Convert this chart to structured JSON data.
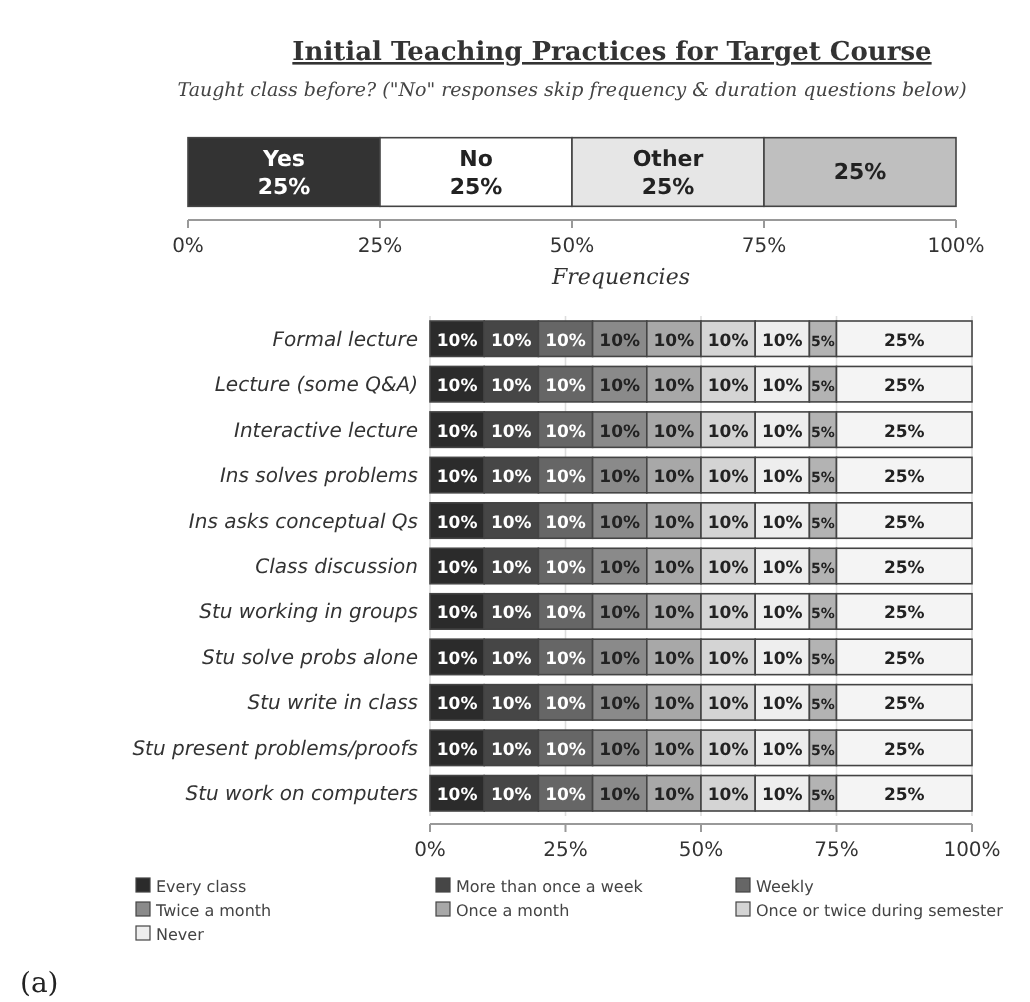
{
  "chart_data": [
    {
      "type": "bar",
      "orientation": "horizontal",
      "stacked": true,
      "title": "Initial Teaching Practices for Target Course",
      "subtitle": "Taught class before? (\"No\" responses skip frequency & duration questions below)",
      "categories": [
        null
      ],
      "series": [
        {
          "name": "Yes",
          "color": "#333333",
          "values": [
            25
          ],
          "value_labels": [
            "25%"
          ]
        },
        {
          "name": "No",
          "color": "#ffffff",
          "values": [
            25
          ],
          "value_labels": [
            "25%"
          ]
        },
        {
          "name": "Other",
          "color": "#e6e6e6",
          "values": [
            25
          ],
          "value_labels": [
            "25%"
          ]
        },
        {
          "color": "#bfbfbf",
          "values": [
            25
          ],
          "value_labels": [
            "25%"
          ]
        }
      ],
      "xlim": [
        0,
        100
      ],
      "xticks": [
        {
          "value": 0,
          "label": "0%"
        },
        {
          "value": 25,
          "label": "25%"
        },
        {
          "value": 50,
          "label": "50%"
        },
        {
          "value": 75,
          "label": "75%"
        },
        {
          "value": 100,
          "label": "100%"
        }
      ],
      "legend": false,
      "annotations": [
        "(a)"
      ]
    },
    {
      "type": "bar",
      "orientation": "horizontal",
      "stacked": true,
      "title": "Frequencies",
      "categories": [
        "Formal lecture",
        "Lecture (some Q&A)",
        "Interactive lecture",
        "Ins solves problems",
        "Ins asks conceptual Qs",
        "Class discussion",
        "Stu working in groups",
        "Stu solve probs alone",
        "Stu write in class",
        "Stu present problems/proofs",
        "Stu work on computers"
      ],
      "series": [
        {
          "name": "Every class",
          "color": "#2b2b2b",
          "values": [
            10,
            10,
            10,
            10,
            10,
            10,
            10,
            10,
            10,
            10,
            10
          ],
          "value_labels": [
            "10%",
            "10%",
            "10%",
            "10%",
            "10%",
            "10%",
            "10%",
            "10%",
            "10%",
            "10%",
            "10%"
          ]
        },
        {
          "name": "More than once a week",
          "color": "#464646",
          "values": [
            10,
            10,
            10,
            10,
            10,
            10,
            10,
            10,
            10,
            10,
            10
          ],
          "value_labels": [
            "10%",
            "10%",
            "10%",
            "10%",
            "10%",
            "10%",
            "10%",
            "10%",
            "10%",
            "10%",
            "10%"
          ]
        },
        {
          "name": "Weekly",
          "color": "#666666",
          "values": [
            10,
            10,
            10,
            10,
            10,
            10,
            10,
            10,
            10,
            10,
            10
          ],
          "value_labels": [
            "10%",
            "10%",
            "10%",
            "10%",
            "10%",
            "10%",
            "10%",
            "10%",
            "10%",
            "10%",
            "10%"
          ]
        },
        {
          "name": "Twice a month",
          "color": "#8a8a8a",
          "values": [
            10,
            10,
            10,
            10,
            10,
            10,
            10,
            10,
            10,
            10,
            10
          ],
          "value_labels": [
            "10%",
            "10%",
            "10%",
            "10%",
            "10%",
            "10%",
            "10%",
            "10%",
            "10%",
            "10%",
            "10%"
          ]
        },
        {
          "name": "Once a month",
          "color": "#a8a8a8",
          "values": [
            10,
            10,
            10,
            10,
            10,
            10,
            10,
            10,
            10,
            10,
            10
          ],
          "value_labels": [
            "10%",
            "10%",
            "10%",
            "10%",
            "10%",
            "10%",
            "10%",
            "10%",
            "10%",
            "10%",
            "10%"
          ]
        },
        {
          "name": "Once or twice during semester",
          "color": "#d4d4d4",
          "values": [
            10,
            10,
            10,
            10,
            10,
            10,
            10,
            10,
            10,
            10,
            10
          ],
          "value_labels": [
            "10%",
            "10%",
            "10%",
            "10%",
            "10%",
            "10%",
            "10%",
            "10%",
            "10%",
            "10%",
            "10%"
          ]
        },
        {
          "name": "Never",
          "color": "#eeeeee",
          "values": [
            10,
            10,
            10,
            10,
            10,
            10,
            10,
            10,
            10,
            10,
            10
          ],
          "value_labels": [
            "10%",
            "10%",
            "10%",
            "10%",
            "10%",
            "10%",
            "10%",
            "10%",
            "10%",
            "10%",
            "10%"
          ]
        },
        {
          "color": "#b3b3b3",
          "values": [
            5,
            5,
            5,
            5,
            5,
            5,
            5,
            5,
            5,
            5,
            5
          ],
          "value_labels": [
            "5%",
            "5%",
            "5%",
            "5%",
            "5%",
            "5%",
            "5%",
            "5%",
            "5%",
            "5%",
            "5%"
          ]
        },
        {
          "color": "#f4f4f4",
          "values": [
            25,
            25,
            25,
            25,
            25,
            25,
            25,
            25,
            25,
            25,
            25
          ],
          "value_labels": [
            "25%",
            "25%",
            "25%",
            "25%",
            "25%",
            "25%",
            "25%",
            "25%",
            "25%",
            "25%",
            "25%"
          ]
        }
      ],
      "xlim": [
        0,
        100
      ],
      "xticks": [
        {
          "value": 0,
          "label": "0%"
        },
        {
          "value": 25,
          "label": "25%"
        },
        {
          "value": 50,
          "label": "50%"
        },
        {
          "value": 75,
          "label": "75%"
        },
        {
          "value": 100,
          "label": "100%"
        }
      ],
      "grid": "x",
      "legend": "bottom"
    }
  ]
}
